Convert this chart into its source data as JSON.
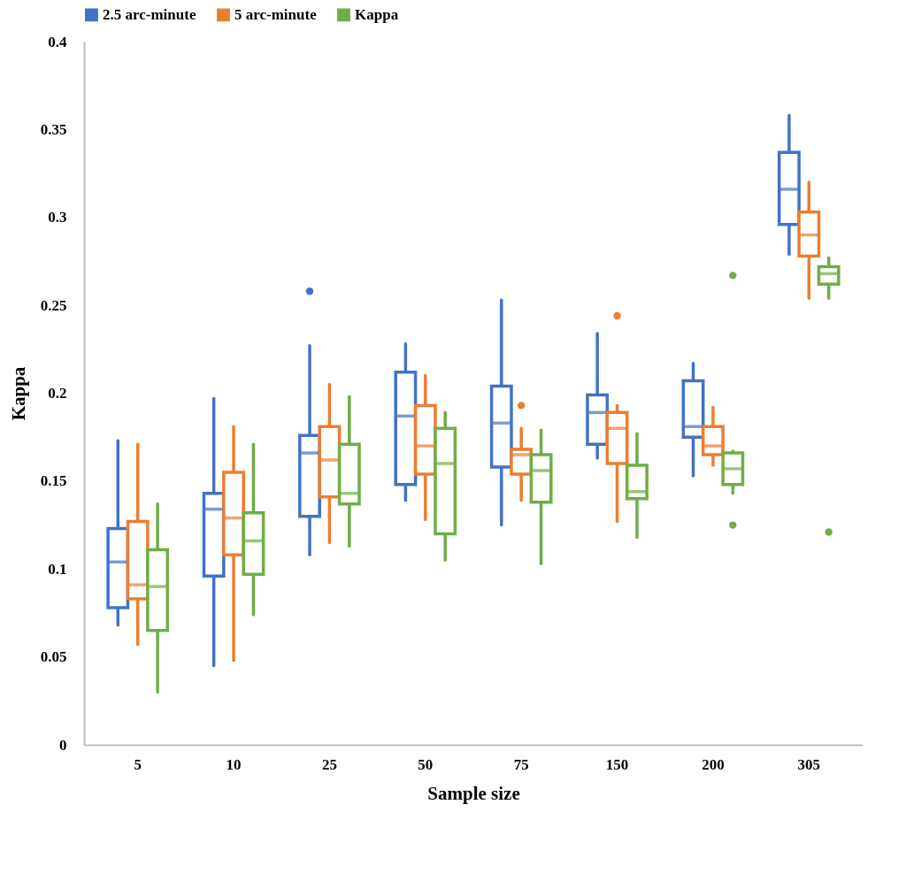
{
  "chart_data": {
    "type": "box",
    "xlabel": "Sample size",
    "ylabel": "Kappa",
    "legend": "top",
    "categories": [
      "5",
      "10",
      "25",
      "50",
      "75",
      "150",
      "200",
      "305"
    ],
    "ylim": [
      0,
      0.4
    ],
    "yticks": [
      0,
      0.05,
      0.1,
      0.15,
      0.2,
      0.25,
      0.3,
      0.35,
      0.4
    ],
    "series": [
      {
        "name": "2.5 arc-minute",
        "color": "#4472c4",
        "boxes": [
          {
            "low": 0.068,
            "q1": 0.078,
            "median": 0.104,
            "q3": 0.123,
            "high": 0.173
          },
          {
            "low": 0.045,
            "q1": 0.096,
            "median": 0.134,
            "q3": 0.143,
            "high": 0.197
          },
          {
            "low": 0.108,
            "q1": 0.13,
            "median": 0.166,
            "q3": 0.176,
            "high": 0.227,
            "outliers": [
              0.258
            ]
          },
          {
            "low": 0.139,
            "q1": 0.148,
            "median": 0.187,
            "q3": 0.212,
            "high": 0.228
          },
          {
            "low": 0.125,
            "q1": 0.158,
            "median": 0.183,
            "q3": 0.204,
            "high": 0.253
          },
          {
            "low": 0.163,
            "q1": 0.171,
            "median": 0.189,
            "q3": 0.199,
            "high": 0.234
          },
          {
            "low": 0.153,
            "q1": 0.175,
            "median": 0.181,
            "q3": 0.207,
            "high": 0.217
          },
          {
            "low": 0.279,
            "q1": 0.296,
            "median": 0.316,
            "q3": 0.337,
            "high": 0.358
          }
        ]
      },
      {
        "name": "5 arc-minute",
        "color": "#ed7d31",
        "boxes": [
          {
            "low": 0.057,
            "q1": 0.083,
            "median": 0.091,
            "q3": 0.127,
            "high": 0.171
          },
          {
            "low": 0.048,
            "q1": 0.108,
            "median": 0.129,
            "q3": 0.155,
            "high": 0.181
          },
          {
            "low": 0.115,
            "q1": 0.141,
            "median": 0.162,
            "q3": 0.181,
            "high": 0.205
          },
          {
            "low": 0.128,
            "q1": 0.154,
            "median": 0.17,
            "q3": 0.193,
            "high": 0.21
          },
          {
            "low": 0.139,
            "q1": 0.154,
            "median": 0.165,
            "q3": 0.168,
            "high": 0.18,
            "outliers": [
              0.193
            ]
          },
          {
            "low": 0.127,
            "q1": 0.16,
            "median": 0.18,
            "q3": 0.189,
            "high": 0.193,
            "outliers": [
              0.244
            ]
          },
          {
            "low": 0.159,
            "q1": 0.165,
            "median": 0.17,
            "q3": 0.181,
            "high": 0.192
          },
          {
            "low": 0.254,
            "q1": 0.278,
            "median": 0.29,
            "q3": 0.303,
            "high": 0.32
          }
        ]
      },
      {
        "name": "Kappa",
        "color": "#70ad47",
        "boxes": [
          {
            "low": 0.03,
            "q1": 0.065,
            "median": 0.09,
            "q3": 0.111,
            "high": 0.137
          },
          {
            "low": 0.074,
            "q1": 0.097,
            "median": 0.116,
            "q3": 0.132,
            "high": 0.171
          },
          {
            "low": 0.113,
            "q1": 0.137,
            "median": 0.143,
            "q3": 0.171,
            "high": 0.198
          },
          {
            "low": 0.105,
            "q1": 0.12,
            "median": 0.16,
            "q3": 0.18,
            "high": 0.189
          },
          {
            "low": 0.103,
            "q1": 0.138,
            "median": 0.156,
            "q3": 0.165,
            "high": 0.179
          },
          {
            "low": 0.118,
            "q1": 0.14,
            "median": 0.144,
            "q3": 0.159,
            "high": 0.177
          },
          {
            "low": 0.143,
            "q1": 0.148,
            "median": 0.157,
            "q3": 0.166,
            "high": 0.167,
            "outliers": [
              0.267,
              0.125
            ]
          },
          {
            "low": 0.254,
            "q1": 0.262,
            "median": 0.268,
            "q3": 0.272,
            "high": 0.277,
            "outliers": [
              0.121
            ]
          }
        ]
      }
    ]
  }
}
